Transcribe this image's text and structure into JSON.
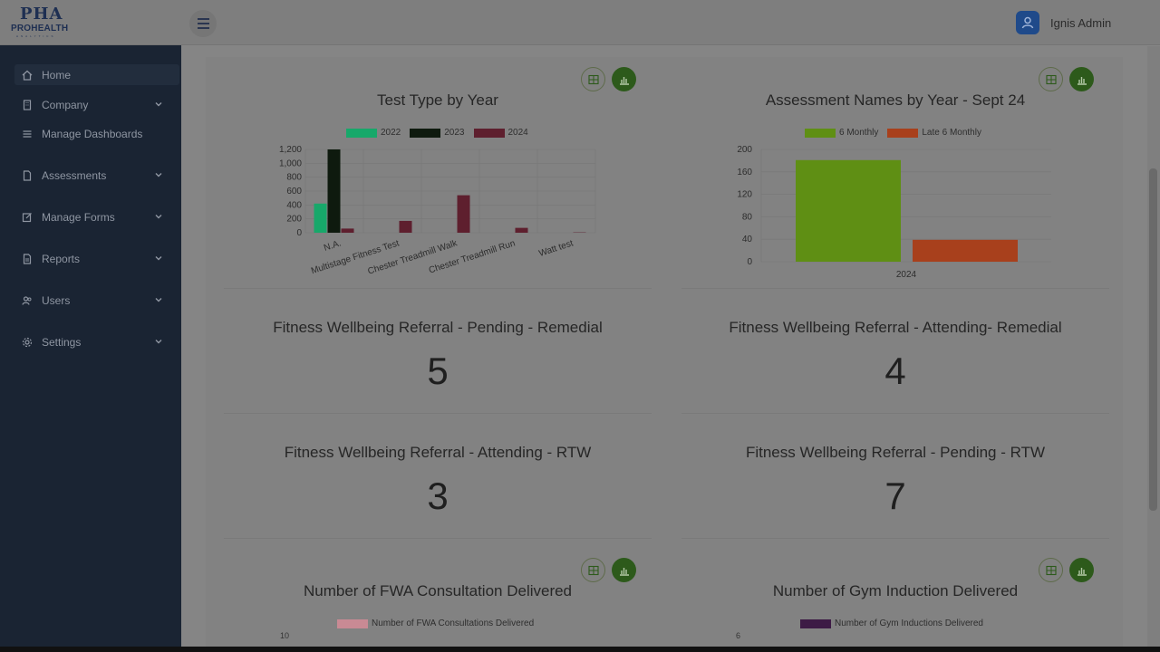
{
  "header": {
    "logo_main": "PHA",
    "logo_sub": "PROHEALTH",
    "logo_tag": "ANALYTICS",
    "user_name": "Ignis Admin"
  },
  "sidebar": {
    "items": [
      {
        "label": "Home",
        "icon": "home-icon"
      },
      {
        "label": "Company",
        "icon": "building-icon"
      },
      {
        "label": "Manage Dashboards",
        "icon": "list-icon"
      },
      {
        "label": "Assessments",
        "icon": "document-icon"
      },
      {
        "label": "Manage Forms",
        "icon": "edit-form-icon"
      },
      {
        "label": "Reports",
        "icon": "report-icon"
      },
      {
        "label": "Users",
        "icon": "users-icon"
      },
      {
        "label": "Settings",
        "icon": "gear-icon"
      }
    ]
  },
  "panels": {
    "p1_title": "Test Type by Year",
    "p2_title": "Assessment Names by Year - Sept 24",
    "p3_title": "Fitness Wellbeing Referral - Pending - Remedial",
    "p3_value": "5",
    "p4_title": "Fitness Wellbeing Referral - Attending- Remedial",
    "p4_value": "4",
    "p5_title": "Fitness Wellbeing Referral - Attending - RTW",
    "p5_value": "3",
    "p6_title": "Fitness Wellbeing Referral - Pending - RTW",
    "p6_value": "7",
    "p7_title": "Number of FWA Consultation Delivered",
    "p7_legend": "Number of FWA Consultations Delivered",
    "p7_ytop": "10",
    "p8_title": "Number of Gym Induction Delivered",
    "p8_legend": "Number of Gym Inductions Delivered",
    "p8_ytop": "6"
  },
  "colors": {
    "y2022": "#17a86a",
    "y2023": "#0e1a0e",
    "y2024": "#5e1f2e",
    "six_monthly": "#5f8f14",
    "late_six_monthly": "#a8401c",
    "fwa": "#c98a94",
    "gym": "#3d1b45"
  },
  "chart_data": [
    {
      "type": "bar",
      "title": "Test Type by Year",
      "categories": [
        "N.A.",
        "Multistage Fitness Test",
        "Chester Treadmill Walk",
        "Chester Treadmill Run",
        "Watt test"
      ],
      "series": [
        {
          "name": "2022",
          "values": [
            420,
            0,
            0,
            0,
            0
          ]
        },
        {
          "name": "2023",
          "values": [
            1200,
            0,
            0,
            0,
            0
          ]
        },
        {
          "name": "2024",
          "values": [
            60,
            170,
            540,
            70,
            5
          ]
        }
      ],
      "yticks": [
        "0",
        "200",
        "400",
        "600",
        "800",
        "1,000",
        "1,200"
      ],
      "ylim": [
        0,
        1200
      ]
    },
    {
      "type": "bar",
      "title": "Assessment Names by Year - Sept 24",
      "categories": [
        "2024"
      ],
      "series": [
        {
          "name": "6 Monthly",
          "values": [
            181
          ]
        },
        {
          "name": "Late 6 Monthly",
          "values": [
            39
          ]
        }
      ],
      "yticks": [
        "0",
        "40",
        "80",
        "120",
        "160",
        "200"
      ],
      "ylim": [
        0,
        200
      ]
    }
  ]
}
